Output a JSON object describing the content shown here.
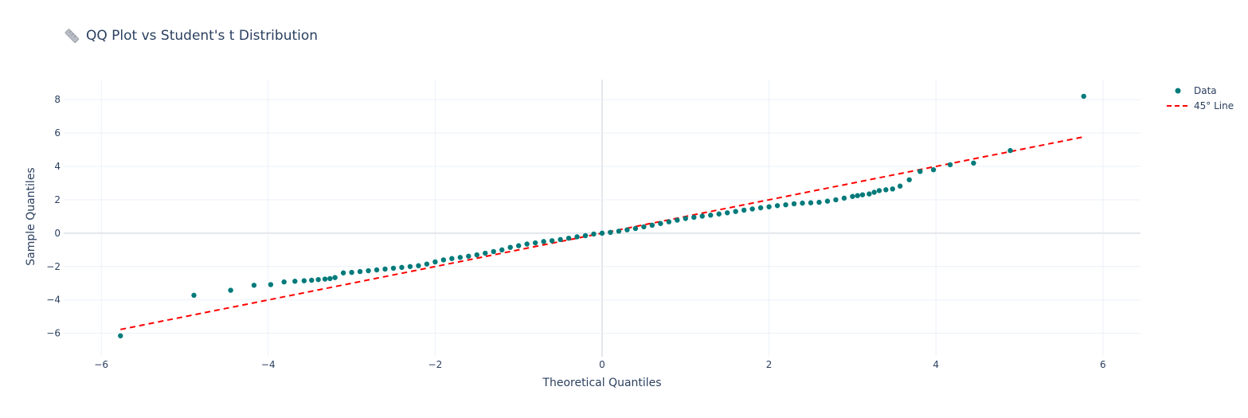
{
  "title": {
    "icon": "ruler-icon",
    "text": "QQ Plot vs Student's t Distribution"
  },
  "colors": {
    "data": "#007a7a",
    "line": "#ff0000",
    "grid": "#ebf0f8",
    "zeroline": "#e3e6ec",
    "text": "#2a3f5f"
  },
  "chart_data": {
    "type": "scatter",
    "title": "QQ Plot vs Student's t Distribution",
    "xlabel": "Theoretical Quantiles",
    "ylabel": "Sample Quantiles",
    "xlim": [
      -6.45,
      6.45
    ],
    "ylim": [
      -7.4,
      9.2
    ],
    "xticks": [
      -6,
      -4,
      -2,
      0,
      2,
      4,
      6
    ],
    "yticks": [
      -6,
      -4,
      -2,
      0,
      2,
      4,
      6,
      8
    ],
    "xtick_labels": [
      "−6",
      "−4",
      "−2",
      "0",
      "2",
      "4",
      "6"
    ],
    "ytick_labels": [
      "−6",
      "−4",
      "−2",
      "0",
      "2",
      "4",
      "6",
      "8"
    ],
    "grid": true,
    "legend_position": "top-right",
    "series": [
      {
        "name": "Data",
        "mode": "markers",
        "color": "#007a7a",
        "x": [
          -5.77,
          -4.89,
          -4.45,
          -4.17,
          -3.97,
          -3.81,
          -3.68,
          -3.57,
          -3.48,
          -3.4,
          -3.32,
          -3.26,
          -3.2,
          -3.1,
          -3.0,
          -2.9,
          -2.8,
          -2.7,
          -2.6,
          -2.5,
          -2.4,
          -2.3,
          -2.2,
          -2.1,
          -2.0,
          -1.9,
          -1.8,
          -1.7,
          -1.6,
          -1.5,
          -1.4,
          -1.3,
          -1.2,
          -1.1,
          -1.0,
          -0.9,
          -0.8,
          -0.7,
          -0.6,
          -0.5,
          -0.4,
          -0.3,
          -0.2,
          -0.1,
          0.0,
          0.1,
          0.2,
          0.3,
          0.4,
          0.5,
          0.6,
          0.7,
          0.8,
          0.9,
          1.0,
          1.1,
          1.2,
          1.3,
          1.4,
          1.5,
          1.6,
          1.7,
          1.8,
          1.9,
          2.0,
          2.1,
          2.2,
          2.3,
          2.4,
          2.5,
          2.6,
          2.7,
          2.8,
          2.9,
          3.0,
          3.06,
          3.12,
          3.2,
          3.26,
          3.32,
          3.4,
          3.48,
          3.57,
          3.68,
          3.81,
          3.97,
          4.17,
          4.45,
          4.89,
          5.77
        ],
        "y": [
          -6.15,
          -3.72,
          -3.42,
          -3.12,
          -3.08,
          -2.92,
          -2.88,
          -2.85,
          -2.82,
          -2.78,
          -2.75,
          -2.72,
          -2.66,
          -2.38,
          -2.35,
          -2.3,
          -2.25,
          -2.2,
          -2.15,
          -2.1,
          -2.05,
          -2.0,
          -1.95,
          -1.85,
          -1.72,
          -1.6,
          -1.52,
          -1.45,
          -1.38,
          -1.3,
          -1.2,
          -1.1,
          -1.0,
          -0.85,
          -0.75,
          -0.65,
          -0.58,
          -0.5,
          -0.45,
          -0.38,
          -0.3,
          -0.22,
          -0.15,
          -0.05,
          0.0,
          0.05,
          0.12,
          0.2,
          0.28,
          0.38,
          0.48,
          0.58,
          0.68,
          0.78,
          0.88,
          0.95,
          1.02,
          1.08,
          1.15,
          1.22,
          1.3,
          1.38,
          1.45,
          1.52,
          1.58,
          1.65,
          1.7,
          1.76,
          1.8,
          1.82,
          1.85,
          1.92,
          2.0,
          2.1,
          2.2,
          2.25,
          2.3,
          2.35,
          2.45,
          2.55,
          2.6,
          2.65,
          2.82,
          3.2,
          3.7,
          3.8,
          4.1,
          4.2,
          4.95,
          8.2
        ]
      },
      {
        "name": "45° Line",
        "mode": "lines",
        "dash": "dash",
        "color": "#ff0000",
        "x": [
          -5.77,
          5.77
        ],
        "y": [
          -5.77,
          5.77
        ]
      }
    ]
  }
}
